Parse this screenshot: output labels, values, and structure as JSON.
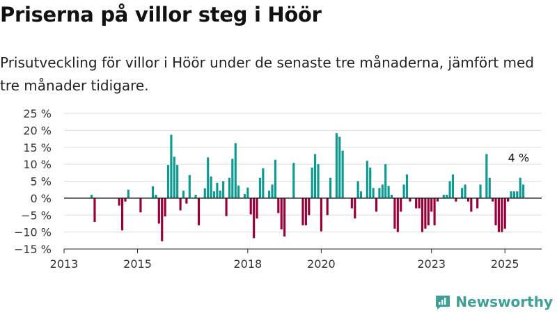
{
  "title": "Priserna på villor steg i Höör",
  "subtitle": "Prisutveckling för villor i Höör under de senaste tre månaderna, jämfört med tre månader tidigare.",
  "brand": {
    "name": "Newsworthy",
    "icon": "newsworthy-logo-icon",
    "color": "#3d9f95"
  },
  "colors": {
    "positive": "#0c9a93",
    "negative": "#990039"
  },
  "chart_data": {
    "type": "bar",
    "title": "Priserna på villor steg i Höör",
    "subtitle": "Prisutveckling för villor i Höör under de senaste tre månaderna, jämfört med tre månader tidigare.",
    "xlabel": "",
    "ylabel": "",
    "x_ticks": [
      "2013",
      "2015",
      "2018",
      "2020",
      "2023",
      "2025"
    ],
    "x_tick_positions": [
      2013,
      2015,
      2018,
      2020,
      2023,
      2025
    ],
    "y_ticks": [
      "25 %",
      "20 %",
      "15 %",
      "10 %",
      "5 %",
      "0 %",
      "−5 %",
      "−10 %",
      "−15 %"
    ],
    "y_tick_values": [
      25,
      20,
      15,
      10,
      5,
      0,
      -5,
      -10,
      -15
    ],
    "ylim": [
      -15,
      25
    ],
    "xlim": [
      2013,
      2026
    ],
    "grid": true,
    "annotation": {
      "text": "4 %",
      "x": 2025.333,
      "value": 4
    },
    "series": [
      {
        "points": [
          [
            2013.75,
            1
          ],
          [
            2013.833,
            -7
          ],
          [
            2014.5,
            -2.2
          ],
          [
            2014.583,
            -9.5
          ],
          [
            2014.667,
            -1
          ],
          [
            2014.75,
            2.5
          ],
          [
            2015.083,
            -4.2
          ],
          [
            2015.417,
            3.5
          ],
          [
            2015.5,
            1
          ],
          [
            2015.583,
            -7.5
          ],
          [
            2015.667,
            -12.7
          ],
          [
            2015.75,
            -5.4
          ],
          [
            2015.833,
            9.8
          ],
          [
            2015.917,
            18.7
          ],
          [
            2016.0,
            12.2
          ],
          [
            2016.083,
            9.8
          ],
          [
            2016.167,
            -3.6
          ],
          [
            2016.25,
            2.2
          ],
          [
            2016.333,
            -1.6
          ],
          [
            2016.417,
            6.8
          ],
          [
            2016.583,
            1
          ],
          [
            2016.667,
            -8
          ],
          [
            2016.833,
            2.9
          ],
          [
            2016.917,
            12
          ],
          [
            2017.0,
            6.4
          ],
          [
            2017.083,
            2
          ],
          [
            2017.167,
            4.5
          ],
          [
            2017.25,
            2.2
          ],
          [
            2017.333,
            5
          ],
          [
            2017.417,
            -5.3
          ],
          [
            2017.5,
            6
          ],
          [
            2017.583,
            11.6
          ],
          [
            2017.667,
            16.2
          ],
          [
            2017.75,
            3.7
          ],
          [
            2017.917,
            1.2
          ],
          [
            2018.0,
            3.1
          ],
          [
            2018.083,
            -4.8
          ],
          [
            2018.167,
            -11.8
          ],
          [
            2018.25,
            -6
          ],
          [
            2018.333,
            6
          ],
          [
            2018.417,
            8.8
          ],
          [
            2018.583,
            2.2
          ],
          [
            2018.667,
            4
          ],
          [
            2018.75,
            11.3
          ],
          [
            2018.833,
            -4.4
          ],
          [
            2018.917,
            -9.2
          ],
          [
            2019.0,
            -11.3
          ],
          [
            2019.25,
            10.4
          ],
          [
            2019.5,
            -8
          ],
          [
            2019.583,
            -8
          ],
          [
            2019.667,
            -5
          ],
          [
            2019.75,
            9
          ],
          [
            2019.833,
            13
          ],
          [
            2019.917,
            10
          ],
          [
            2020.0,
            -9.8
          ],
          [
            2020.167,
            -5
          ],
          [
            2020.25,
            6
          ],
          [
            2020.417,
            19.2
          ],
          [
            2020.5,
            18.1
          ],
          [
            2020.583,
            14
          ],
          [
            2020.833,
            -3
          ],
          [
            2020.917,
            -6
          ],
          [
            2021.0,
            5
          ],
          [
            2021.083,
            2
          ],
          [
            2021.25,
            11
          ],
          [
            2021.333,
            9
          ],
          [
            2021.417,
            3
          ],
          [
            2021.5,
            -4
          ],
          [
            2021.583,
            3
          ],
          [
            2021.667,
            4
          ],
          [
            2021.75,
            10
          ],
          [
            2021.833,
            3.6
          ],
          [
            2021.917,
            1
          ],
          [
            2022.0,
            -9
          ],
          [
            2022.083,
            -10
          ],
          [
            2022.167,
            -4
          ],
          [
            2022.25,
            4
          ],
          [
            2022.333,
            7
          ],
          [
            2022.417,
            -1
          ],
          [
            2022.583,
            -3
          ],
          [
            2022.667,
            -3
          ],
          [
            2022.75,
            -10
          ],
          [
            2022.833,
            -9
          ],
          [
            2022.917,
            -8
          ],
          [
            2023.0,
            -4
          ],
          [
            2023.083,
            -8
          ],
          [
            2023.167,
            -1
          ],
          [
            2023.333,
            1
          ],
          [
            2023.417,
            1
          ],
          [
            2023.5,
            5
          ],
          [
            2023.583,
            7
          ],
          [
            2023.667,
            -1
          ],
          [
            2023.833,
            3
          ],
          [
            2023.917,
            4
          ],
          [
            2024.0,
            -1
          ],
          [
            2024.083,
            -4
          ],
          [
            2024.25,
            -3
          ],
          [
            2024.333,
            4
          ],
          [
            2024.5,
            13
          ],
          [
            2024.583,
            6
          ],
          [
            2024.667,
            -1
          ],
          [
            2024.75,
            -8
          ],
          [
            2024.833,
            -10
          ],
          [
            2024.917,
            -10
          ],
          [
            2025.0,
            -9
          ],
          [
            2025.083,
            -1
          ],
          [
            2025.167,
            2
          ],
          [
            2025.25,
            2
          ],
          [
            2025.333,
            2
          ],
          [
            2025.417,
            6
          ],
          [
            2025.5,
            4
          ]
        ]
      }
    ]
  }
}
